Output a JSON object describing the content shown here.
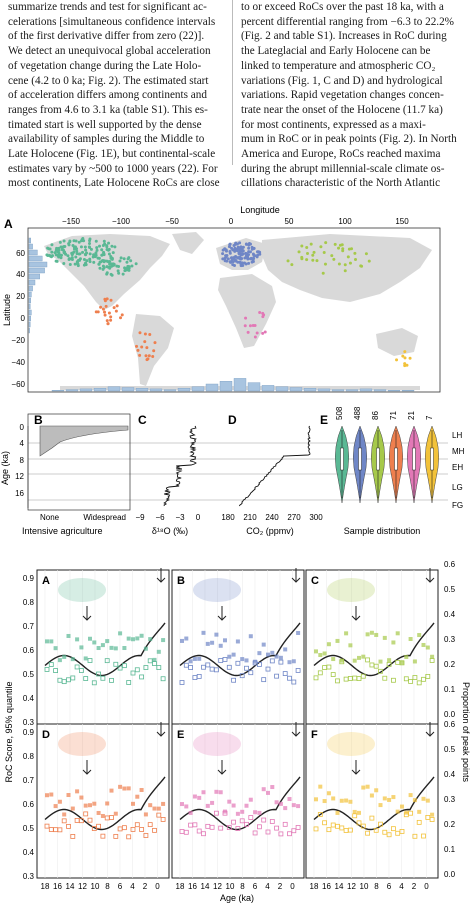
{
  "text": {
    "left": [
      "summarize trends and test for significant ac-",
      "celerations [simultaneous confidence intervals",
      "of the first derivative differ from zero (22)].",
      "    We detect an unequivocal global acceleration",
      "of vegetation change during the Late Holo-",
      "cene (4.2 to 0 ka; Fig. 2). The estimated start",
      "of acceleration differs among continents and",
      "ranges from 4.6 to 3.1 ka (table S1). This es-",
      "timated start is well supported by the dense",
      "availability of samples during the Middle to",
      "Late Holocene (Fig. 1E), but continental-scale",
      "estimates vary by ~500 to 1000 years (22). For",
      "most continents, Late Holocene RoCs are close"
    ],
    "right": [
      "to or exceed RoCs over the past 18 ka, with a",
      "percent differential ranging from −6.3 to 22.2%",
      "(Fig. 2 and table S1). Increases in RoC during",
      "the Lateglacial and Early Holocene can be",
      "linked to temperature and atmospheric CO₂",
      "variations (Fig. 1, C and D) and hydrological",
      "variations. Rapid vegetation changes concen-",
      "trate near the onset of the Holocene (11.7 ka)",
      "for most continents, expressed as a maxi-",
      "mum in RoC or in peak points (Fig. 2). In North",
      "America and Europe, RoCs reached maxima",
      "during the abrupt millennial-scale climate os-",
      "cillations characteristic of the North Atlantic"
    ]
  },
  "fig1": {
    "map_panel_letter": "A",
    "longitude_label": "Longitude",
    "latitude_label": "Latitude",
    "lon_ticks": [
      "−150",
      "−100",
      "−50",
      "0",
      "50",
      "100",
      "150"
    ],
    "lat_ticks": [
      "60",
      "40",
      "20",
      "0",
      "−20",
      "−40",
      "−60"
    ],
    "panel_b": {
      "letter": "B",
      "xlabel": "Intensive agriculture",
      "tick_left": "None",
      "tick_right": "Widespread"
    },
    "panel_c": {
      "letter": "C",
      "xlabel": "δ¹⁸O (‰)",
      "ticks": [
        "−9",
        "−6",
        "−3",
        "0"
      ]
    },
    "panel_d": {
      "letter": "D",
      "xlabel": "CO₂ (ppmv)",
      "ticks": [
        "180",
        "210",
        "240",
        "270",
        "300"
      ]
    },
    "panel_e": {
      "letter": "E",
      "xlabel": "Sample distribution",
      "counts": [
        "508",
        "488",
        "86",
        "71",
        "21",
        "7"
      ]
    },
    "age_label": "Age (ka)",
    "age_ticks": [
      "0",
      "4",
      "8",
      "12",
      "16"
    ],
    "periods": [
      "LH",
      "MH",
      "EH",
      "LG",
      "FG"
    ]
  },
  "fig2": {
    "ylabel_left": "RoC Score, 95% quantile",
    "ylabel_right": "Proportion of peak points",
    "xlabel": "Age (ka)",
    "left_ticks": [
      "0.9",
      "0.8",
      "0.7",
      "0.6",
      "0.5",
      "0.4",
      "0.3"
    ],
    "right_ticks": [
      "0.6",
      "0.5",
      "0.4",
      "0.3",
      "0.2",
      "0.1",
      "0.0"
    ],
    "x_ticks": [
      "18",
      "16",
      "14",
      "12",
      "10",
      "8",
      "6",
      "4",
      "2",
      "0"
    ],
    "panels": [
      {
        "letter": "A",
        "color": "#5ab894"
      },
      {
        "letter": "B",
        "color": "#6f86c6"
      },
      {
        "letter": "C",
        "color": "#a6c94a"
      },
      {
        "letter": "D",
        "color": "#ee7f4e"
      },
      {
        "letter": "E",
        "color": "#e278b6"
      },
      {
        "letter": "F",
        "color": "#f2c23a"
      }
    ]
  },
  "colors": {
    "north_america": "#5ab894",
    "europe": "#6f86c6",
    "asia": "#a6c94a",
    "latin_america": "#ee7f4e",
    "africa": "#e278b6",
    "oceania": "#f2c23a",
    "land": "#d9d9d9",
    "hist": "#a8c4e0"
  }
}
